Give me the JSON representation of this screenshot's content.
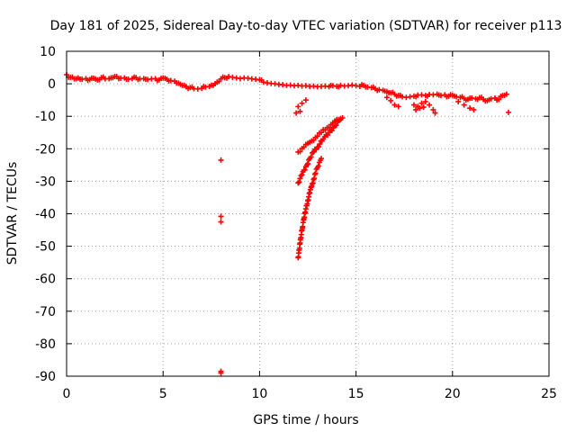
{
  "chart_data": {
    "type": "scatter",
    "title": "Day 181 of 2025, Sidereal Day-to-day VTEC variation (SDTVAR) for receiver p113",
    "xlabel": "GPS time / hours",
    "ylabel": "SDTVAR / TECUs",
    "xlim": [
      0,
      25
    ],
    "ylim": [
      -90,
      10
    ],
    "x_ticks": [
      0,
      5,
      10,
      15,
      20,
      25
    ],
    "y_ticks": [
      10,
      0,
      -10,
      -20,
      -30,
      -40,
      -50,
      -60,
      -70,
      -80,
      -90
    ],
    "grid": true,
    "marker": "plus",
    "color": "#ff0000",
    "series": [
      {
        "name": "baseline track",
        "points": [
          [
            0.0,
            2.8
          ],
          [
            0.2,
            2.0
          ],
          [
            0.4,
            1.5
          ],
          [
            0.6,
            1.8
          ],
          [
            0.8,
            1.4
          ],
          [
            1.0,
            1.6
          ],
          [
            1.2,
            1.3
          ],
          [
            1.4,
            1.7
          ],
          [
            1.6,
            1.2
          ],
          [
            1.8,
            1.9
          ],
          [
            2.0,
            1.5
          ],
          [
            2.2,
            1.6
          ],
          [
            2.4,
            1.9
          ],
          [
            2.6,
            2.2
          ],
          [
            2.8,
            1.7
          ],
          [
            3.0,
            1.8
          ],
          [
            3.2,
            1.4
          ],
          [
            3.4,
            1.6
          ],
          [
            3.6,
            1.9
          ],
          [
            3.8,
            1.5
          ],
          [
            4.0,
            1.6
          ],
          [
            4.2,
            1.3
          ],
          [
            4.4,
            1.5
          ],
          [
            4.6,
            1.6
          ],
          [
            4.8,
            1.2
          ],
          [
            5.0,
            1.8
          ],
          [
            5.2,
            1.4
          ],
          [
            5.4,
            1.0
          ],
          [
            5.6,
            0.8
          ],
          [
            5.8,
            0.2
          ],
          [
            6.0,
            -0.5
          ],
          [
            6.2,
            -0.9
          ],
          [
            6.4,
            -1.2
          ],
          [
            6.6,
            -1.5
          ],
          [
            6.8,
            -1.6
          ],
          [
            7.0,
            -1.4
          ],
          [
            7.2,
            -1.0
          ],
          [
            7.4,
            -0.8
          ],
          [
            7.6,
            -0.5
          ],
          [
            7.8,
            0.5
          ],
          [
            8.0,
            1.5
          ],
          [
            8.2,
            1.9
          ],
          [
            8.4,
            2.2
          ],
          [
            8.6,
            2.0
          ],
          [
            8.8,
            1.8
          ],
          [
            9.0,
            1.6
          ],
          [
            9.2,
            1.8
          ],
          [
            9.4,
            1.7
          ],
          [
            9.6,
            1.5
          ],
          [
            9.8,
            1.4
          ],
          [
            10.0,
            1.2
          ],
          [
            10.2,
            0.5
          ],
          [
            10.4,
            0.3
          ],
          [
            10.6,
            0.1
          ],
          [
            10.8,
            0.0
          ],
          [
            11.0,
            -0.2
          ],
          [
            11.2,
            -0.3
          ],
          [
            11.4,
            -0.5
          ],
          [
            11.6,
            -0.4
          ],
          [
            11.8,
            -0.6
          ],
          [
            12.0,
            -0.5
          ],
          [
            12.2,
            -0.7
          ],
          [
            12.4,
            -0.6
          ],
          [
            12.6,
            -0.8
          ],
          [
            12.8,
            -0.7
          ],
          [
            13.0,
            -0.9
          ],
          [
            13.2,
            -0.8
          ],
          [
            13.4,
            -0.7
          ],
          [
            13.6,
            -0.9
          ],
          [
            13.8,
            -0.6
          ],
          [
            14.0,
            -0.8
          ],
          [
            14.2,
            -0.5
          ],
          [
            14.4,
            -0.7
          ],
          [
            14.6,
            -0.6
          ],
          [
            14.8,
            -0.4
          ],
          [
            15.0,
            -0.6
          ],
          [
            15.2,
            -0.8
          ],
          [
            15.4,
            -0.5
          ],
          [
            15.6,
            -1.0
          ],
          [
            15.8,
            -1.2
          ],
          [
            16.0,
            -1.5
          ],
          [
            16.2,
            -1.8
          ],
          [
            16.4,
            -2.0
          ],
          [
            16.6,
            -2.4
          ],
          [
            16.8,
            -2.8
          ],
          [
            17.0,
            -3.2
          ],
          [
            17.2,
            -3.6
          ],
          [
            17.4,
            -4.0
          ],
          [
            17.6,
            -4.2
          ],
          [
            17.8,
            -4.0
          ],
          [
            18.0,
            -3.8
          ],
          [
            18.2,
            -3.5
          ],
          [
            18.4,
            -3.4
          ],
          [
            18.6,
            -3.6
          ],
          [
            18.8,
            -3.3
          ],
          [
            19.0,
            -3.4
          ],
          [
            19.2,
            -3.2
          ],
          [
            19.4,
            -3.6
          ],
          [
            19.6,
            -3.4
          ],
          [
            19.8,
            -3.8
          ],
          [
            20.0,
            -3.5
          ],
          [
            20.2,
            -4.0
          ],
          [
            20.4,
            -4.2
          ],
          [
            20.6,
            -4.5
          ],
          [
            20.8,
            -4.8
          ],
          [
            21.0,
            -4.4
          ],
          [
            21.2,
            -4.6
          ],
          [
            21.4,
            -4.3
          ],
          [
            21.6,
            -4.8
          ],
          [
            21.8,
            -5.2
          ],
          [
            22.0,
            -4.6
          ],
          [
            22.2,
            -4.4
          ],
          [
            22.4,
            -4.8
          ],
          [
            22.6,
            -3.6
          ],
          [
            22.8,
            -3.2
          ]
        ]
      },
      {
        "name": "descending branches",
        "points": [
          [
            16.6,
            -4.2
          ],
          [
            16.8,
            -5.2
          ],
          [
            17.0,
            -6.5
          ],
          [
            17.2,
            -7.0
          ],
          [
            18.0,
            -6.5
          ],
          [
            18.2,
            -7.0
          ],
          [
            18.4,
            -6.0
          ],
          [
            18.6,
            -5.5
          ],
          [
            18.8,
            -6.5
          ],
          [
            19.0,
            -8.0
          ],
          [
            19.1,
            -9.0
          ],
          [
            18.1,
            -8.0
          ],
          [
            18.3,
            -7.5
          ],
          [
            18.5,
            -7.2
          ],
          [
            20.3,
            -5.5
          ],
          [
            20.6,
            -6.5
          ],
          [
            20.9,
            -7.5
          ],
          [
            21.1,
            -8.0
          ]
        ]
      },
      {
        "name": "isolated points",
        "points": [
          [
            22.9,
            -8.8
          ],
          [
            8.0,
            -23.5
          ],
          [
            8.0,
            -40.8
          ],
          [
            8.0,
            -42.5
          ],
          [
            8.0,
            -88.5
          ],
          [
            8.0,
            -89.0
          ],
          [
            12.0,
            -7.0
          ],
          [
            12.2,
            -6.0
          ],
          [
            12.4,
            -5.0
          ],
          [
            11.9,
            -9.0
          ],
          [
            12.1,
            -8.5
          ]
        ]
      },
      {
        "name": "upper arc",
        "points": [
          [
            12.0,
            -21.0
          ],
          [
            12.3,
            -19.5
          ],
          [
            12.6,
            -18.0
          ],
          [
            12.9,
            -16.5
          ],
          [
            13.2,
            -15.0
          ],
          [
            13.5,
            -13.5
          ],
          [
            13.8,
            -12.0
          ],
          [
            14.1,
            -11.0
          ],
          [
            14.3,
            -10.5
          ]
        ]
      },
      {
        "name": "middle arc",
        "points": [
          [
            12.0,
            -30.5
          ],
          [
            12.2,
            -28.0
          ],
          [
            12.4,
            -25.5
          ],
          [
            12.6,
            -23.0
          ],
          [
            12.8,
            -21.0
          ],
          [
            13.0,
            -19.5
          ],
          [
            13.3,
            -17.0
          ],
          [
            13.6,
            -15.0
          ],
          [
            13.9,
            -13.0
          ],
          [
            14.2,
            -11.0
          ]
        ]
      },
      {
        "name": "lower arc",
        "points": [
          [
            12.0,
            -53.5
          ],
          [
            12.1,
            -49.0
          ],
          [
            12.2,
            -45.0
          ],
          [
            12.3,
            -41.5
          ],
          [
            12.4,
            -38.5
          ],
          [
            12.5,
            -36.0
          ],
          [
            12.6,
            -33.5
          ],
          [
            12.7,
            -31.5
          ],
          [
            12.8,
            -29.5
          ],
          [
            12.9,
            -27.5
          ],
          [
            13.0,
            -25.8
          ],
          [
            13.1,
            -24.2
          ],
          [
            13.2,
            -23.0
          ]
        ]
      }
    ]
  }
}
